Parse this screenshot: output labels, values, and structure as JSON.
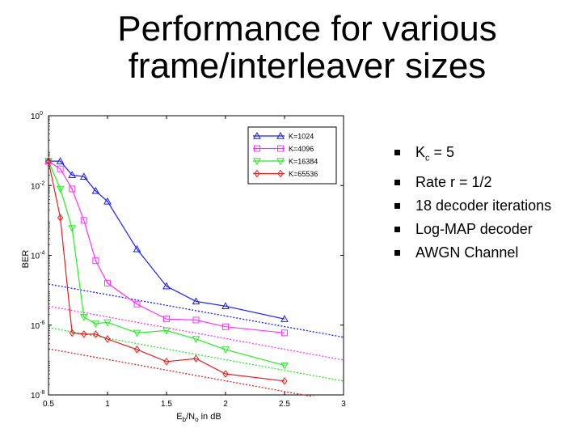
{
  "slide": {
    "title_line1": "Performance for various",
    "title_line2": "frame/interleaver sizes"
  },
  "bullets": [
    {
      "prefix": "K",
      "sub": "c",
      "suffix": " = 5"
    },
    {
      "text": "Rate r = 1/2"
    },
    {
      "text": "18 decoder iterations"
    },
    {
      "text": "Log-MAP decoder"
    },
    {
      "text": "AWGN Channel"
    }
  ],
  "chart_data": {
    "type": "line",
    "ylabel": "BER",
    "xlabel": {
      "main": "E",
      "sub1": "b",
      "mid": "/N",
      "sub2": "o",
      "tail": " in dB"
    },
    "xlim": [
      0.5,
      3
    ],
    "ylim_log10": [
      -8,
      0
    ],
    "y_scale": "log",
    "xticks": [
      "0.5",
      "1",
      "1.5",
      "2",
      "2.5",
      "3"
    ],
    "yticks": [
      {
        "base": "10",
        "exp": "0",
        "pow": 0
      },
      {
        "base": "10",
        "exp": "-2",
        "pow": -2
      },
      {
        "base": "10",
        "exp": "-4",
        "pow": -4
      },
      {
        "base": "10",
        "exp": "-6",
        "pow": -6
      },
      {
        "base": "10",
        "exp": "-8",
        "pow": -8
      }
    ],
    "legend_position": "top-right",
    "series": [
      {
        "name": "K=1024",
        "color": "#1a1aff",
        "marker": "triangle-up",
        "x": [
          0.5,
          0.6,
          0.7,
          0.8,
          0.9,
          1.0,
          1.25,
          1.5,
          1.75,
          2.0,
          2.5
        ],
        "y": [
          0.05,
          0.05,
          0.02,
          0.018,
          0.007,
          0.0035,
          0.00015,
          1.3e-05,
          4.8e-06,
          3.5e-06,
          1.5e-06
        ]
      },
      {
        "name": "K=4096",
        "color": "#ff33ff",
        "marker": "square",
        "x": [
          0.5,
          0.6,
          0.7,
          0.8,
          0.9,
          1.0,
          1.25,
          1.5,
          1.75,
          2.0,
          2.5
        ],
        "y": [
          0.05,
          0.03,
          0.008,
          0.001,
          7e-05,
          1.6e-05,
          4e-06,
          1.5e-06,
          1.4e-06,
          9e-07,
          6e-07
        ]
      },
      {
        "name": "K=16384",
        "color": "#22ee22",
        "marker": "triangle-down",
        "x": [
          0.5,
          0.6,
          0.7,
          0.8,
          0.9,
          1.0,
          1.25,
          1.5,
          1.75,
          2.0,
          2.5
        ],
        "y": [
          0.05,
          0.008,
          0.0006,
          1.7e-06,
          1.1e-06,
          1.2e-06,
          6e-07,
          7e-07,
          4e-07,
          2e-07,
          7e-08
        ]
      },
      {
        "name": "K=65536",
        "color": "#e02020",
        "marker": "diamond",
        "x": [
          0.5,
          0.6,
          0.7,
          0.8,
          0.9,
          1.0,
          1.25,
          1.5,
          1.75,
          2.0,
          2.5
        ],
        "y": [
          0.05,
          0.0012,
          6e-07,
          5.5e-07,
          5.5e-07,
          4e-07,
          2e-07,
          9e-08,
          1.1e-07,
          4e-08,
          2.5e-08
        ]
      }
    ],
    "bounds": [
      {
        "color": "#1a1aff",
        "x": [
          0.5,
          3
        ],
        "y": [
          1.5e-05,
          4.5e-07
        ]
      },
      {
        "color": "#ff33ff",
        "x": [
          0.5,
          3
        ],
        "y": [
          3.5e-06,
          1e-07
        ]
      },
      {
        "color": "#22ee22",
        "x": [
          0.5,
          3
        ],
        "y": [
          8.5e-07,
          2.5e-08
        ]
      },
      {
        "color": "#e02020",
        "x": [
          0.5,
          3
        ],
        "y": [
          2.1e-07,
          6.2e-09
        ]
      }
    ]
  }
}
